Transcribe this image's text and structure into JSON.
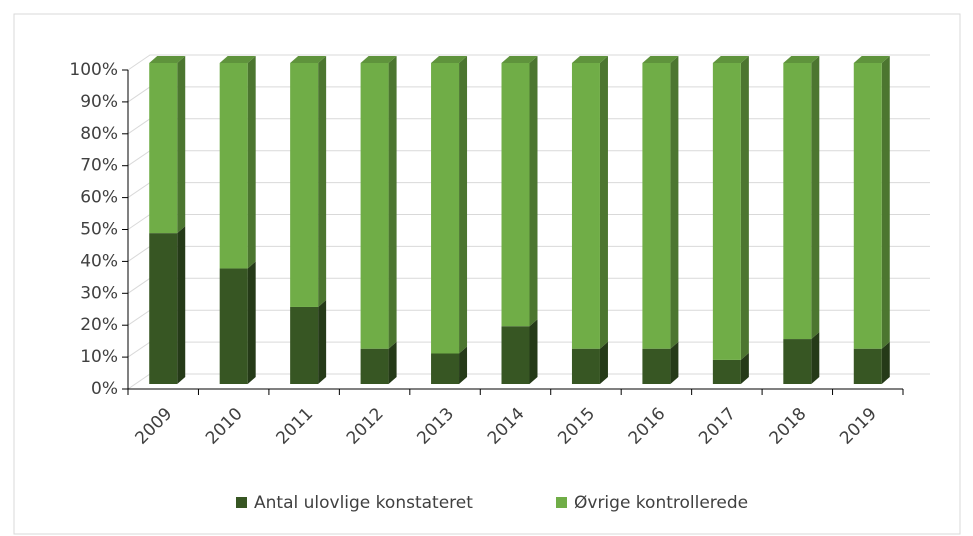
{
  "chart_data": {
    "type": "bar",
    "stacked": true,
    "categories": [
      "2009",
      "2010",
      "2011",
      "2012",
      "2013",
      "2014",
      "2015",
      "2016",
      "2017",
      "2018",
      "2019"
    ],
    "series": [
      {
        "name": "Antal ulovlige konstateret",
        "color": "#375623",
        "values": [
          47,
          36,
          24,
          11,
          9.5,
          18,
          11,
          11,
          7.5,
          14,
          11
        ]
      },
      {
        "name": "Øvrige kontrollerede",
        "color": "#70ad47",
        "values": [
          53,
          64,
          76,
          89,
          90.5,
          82,
          89,
          89,
          92.5,
          86,
          89
        ]
      }
    ],
    "ylim": [
      0,
      100
    ],
    "yticks": [
      {
        "value": 0,
        "label": "0%"
      },
      {
        "value": 10,
        "label": "10%"
      },
      {
        "value": 20,
        "label": "20%"
      },
      {
        "value": 30,
        "label": "30%"
      },
      {
        "value": 40,
        "label": "40%"
      },
      {
        "value": 50,
        "label": "50%"
      },
      {
        "value": 60,
        "label": "60%"
      },
      {
        "value": 70,
        "label": "70%"
      },
      {
        "value": 80,
        "label": "80%"
      },
      {
        "value": 90,
        "label": "90%"
      },
      {
        "value": 100,
        "label": "100%"
      }
    ],
    "grid": true,
    "legend": "bottom"
  }
}
